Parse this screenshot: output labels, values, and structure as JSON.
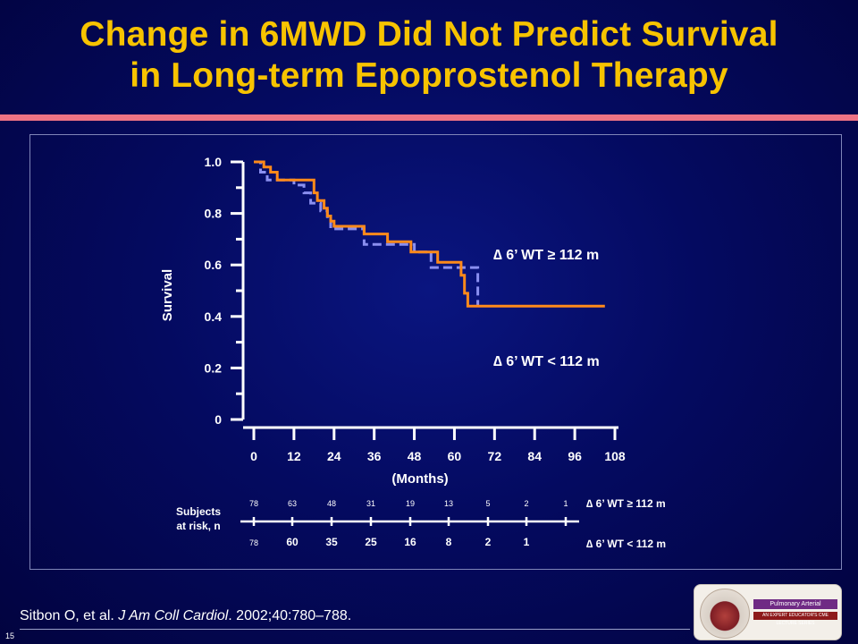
{
  "slide": {
    "title_line1": "Change in 6MWD Did Not Predict Survival",
    "title_line2": "in Long-term Epoprostenol Therapy",
    "citation_prefix": "Sitbon O, et al. ",
    "citation_journal": "J Am Coll Cardiol",
    "citation_suffix": ". 2002;40:780–788.",
    "slide_number": "15",
    "logo": {
      "brand": "SIMPLY SPEAKING",
      "name": "Pulmonary Arterial Hypertension",
      "tagline": "AN EXPERT EDUCATOR'S CME LECTURE SERIES"
    }
  },
  "colors": {
    "background": "#040a60",
    "title": "#f7c300",
    "title_bar": "#ee7384",
    "series_high": "#ff8a1a",
    "series_low": "#8a8ff0",
    "axis": "#ffffff"
  },
  "chart_data": {
    "type": "line",
    "step": true,
    "ylabel": "Survival",
    "xlabel": "(Months)",
    "xlim": [
      0,
      108
    ],
    "ylim": [
      0,
      1.0
    ],
    "x_ticks": [
      "0",
      "12",
      "24",
      "36",
      "48",
      "60",
      "72",
      "84",
      "96",
      "108"
    ],
    "y_ticks": [
      "1.0",
      "0.8",
      "0.6",
      "0.4",
      "0.2",
      "0"
    ],
    "legend_position": "right",
    "series": [
      {
        "name": "∆ 6’ WT ≥ 112 m",
        "color": "#ff8a1a",
        "line_style": "solid",
        "points": [
          [
            0,
            1.0
          ],
          [
            3,
            1.0
          ],
          [
            3,
            0.98
          ],
          [
            5,
            0.98
          ],
          [
            5,
            0.96
          ],
          [
            7,
            0.96
          ],
          [
            7,
            0.93
          ],
          [
            12,
            0.93
          ],
          [
            12,
            0.93
          ],
          [
            18,
            0.93
          ],
          [
            18,
            0.88
          ],
          [
            19,
            0.88
          ],
          [
            19,
            0.85
          ],
          [
            21,
            0.85
          ],
          [
            21,
            0.82
          ],
          [
            22,
            0.82
          ],
          [
            22,
            0.79
          ],
          [
            23,
            0.79
          ],
          [
            23,
            0.77
          ],
          [
            24,
            0.77
          ],
          [
            24,
            0.75
          ],
          [
            33,
            0.75
          ],
          [
            33,
            0.72
          ],
          [
            40,
            0.72
          ],
          [
            40,
            0.69
          ],
          [
            47,
            0.69
          ],
          [
            47,
            0.65
          ],
          [
            55,
            0.65
          ],
          [
            55,
            0.61
          ],
          [
            62,
            0.61
          ],
          [
            62,
            0.56
          ],
          [
            63,
            0.56
          ],
          [
            63,
            0.49
          ],
          [
            64,
            0.49
          ],
          [
            64,
            0.44
          ],
          [
            105,
            0.44
          ]
        ]
      },
      {
        "name": "∆ 6’ WT < 112 m",
        "color": "#8a8ff0",
        "line_style": "dashed",
        "points": [
          [
            0,
            1.0
          ],
          [
            2,
            1.0
          ],
          [
            2,
            0.96
          ],
          [
            4,
            0.96
          ],
          [
            4,
            0.93
          ],
          [
            12,
            0.93
          ],
          [
            12,
            0.91
          ],
          [
            15,
            0.91
          ],
          [
            15,
            0.88
          ],
          [
            17,
            0.88
          ],
          [
            17,
            0.84
          ],
          [
            20,
            0.84
          ],
          [
            20,
            0.81
          ],
          [
            22,
            0.81
          ],
          [
            22,
            0.78
          ],
          [
            23,
            0.78
          ],
          [
            23,
            0.74
          ],
          [
            33,
            0.74
          ],
          [
            33,
            0.68
          ],
          [
            48,
            0.68
          ],
          [
            48,
            0.65
          ],
          [
            53,
            0.65
          ],
          [
            53,
            0.59
          ],
          [
            67,
            0.59
          ],
          [
            67,
            0.44
          ]
        ]
      }
    ],
    "at_risk": {
      "label_line1": "Subjects",
      "label_line2": "at risk, n",
      "rows": [
        {
          "name": "∆ 6’ WT ≥ 112 m",
          "values": [
            "78",
            "63",
            "48",
            "31",
            "19",
            "13",
            "5",
            "2",
            "1"
          ]
        },
        {
          "name": "∆ 6’ WT < 112 m",
          "values": [
            "78",
            "60",
            "35",
            "25",
            "16",
            "8",
            "2",
            "1"
          ]
        }
      ]
    }
  }
}
